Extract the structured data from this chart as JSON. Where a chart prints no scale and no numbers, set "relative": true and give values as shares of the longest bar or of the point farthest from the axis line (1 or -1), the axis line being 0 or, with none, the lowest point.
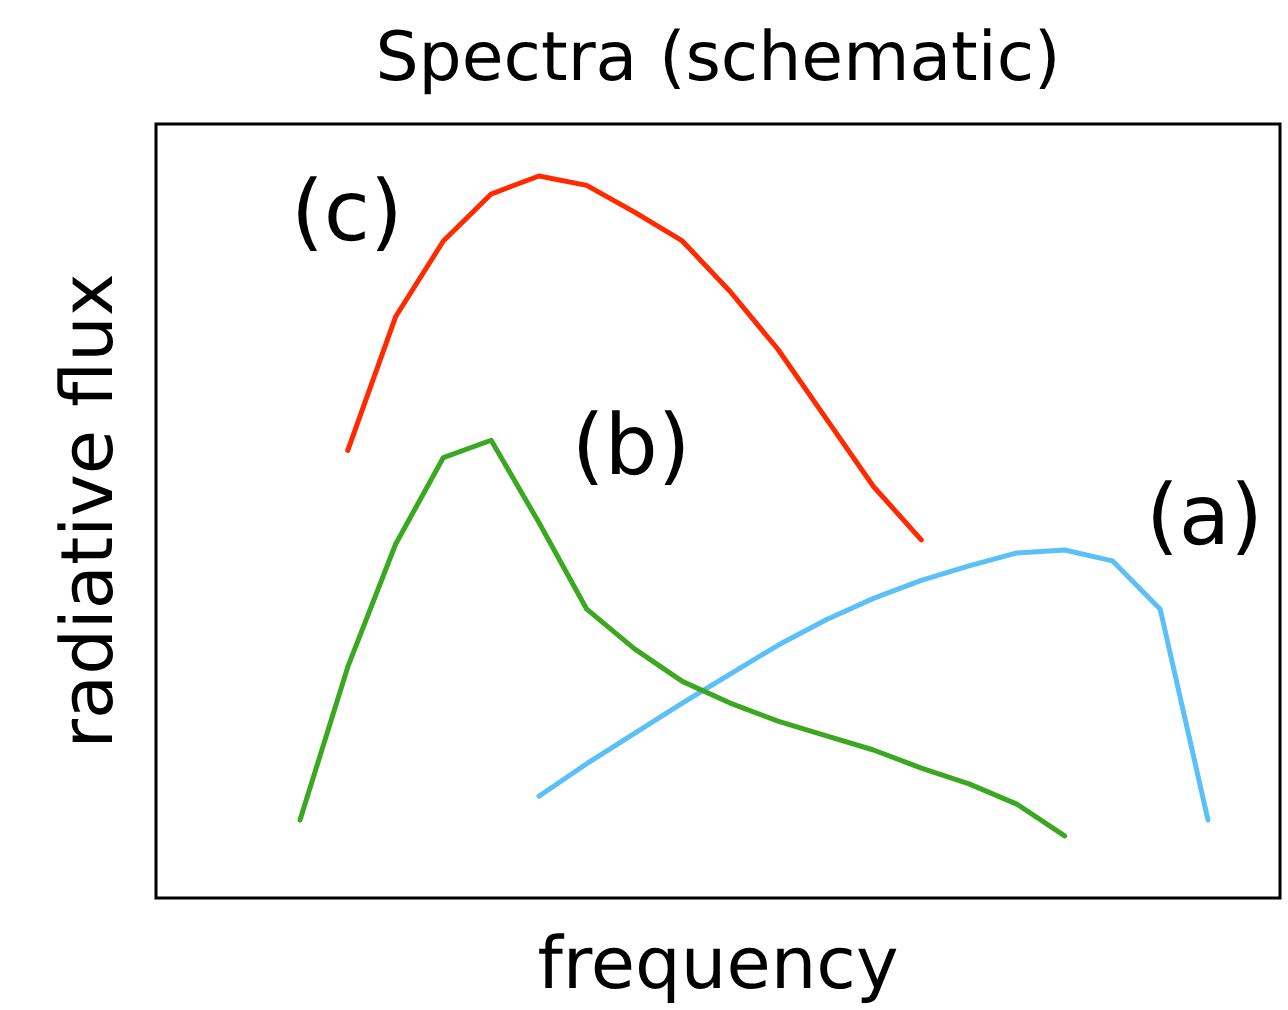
{
  "chart_data": {
    "type": "line",
    "title": "Spectra (schematic)",
    "xlabel": "frequency",
    "ylabel": "radiative flux",
    "relative": true,
    "marker": "none",
    "line_style": "solid",
    "categories": [
      null,
      null,
      null,
      null,
      null,
      null,
      null,
      null,
      null,
      null,
      null,
      null,
      null,
      null,
      null,
      null,
      null,
      null,
      null,
      null
    ],
    "series": [
      {
        "name": "(a)",
        "color": "#5bc0f8",
        "values": [
          null,
          null,
          null,
          null,
          null,
          0.141,
          0.186,
          0.228,
          0.27,
          0.31,
          0.35,
          0.385,
          0.415,
          0.44,
          0.46,
          0.478,
          0.482,
          0.467,
          0.4,
          0.108
        ]
      },
      {
        "name": "(b)",
        "color": "#3aa820",
        "values": [
          0.108,
          0.32,
          0.49,
          0.61,
          0.634,
          0.52,
          0.4,
          0.345,
          0.3,
          0.27,
          0.245,
          0.225,
          0.205,
          0.18,
          0.158,
          0.13,
          0.086,
          null,
          null,
          null
        ]
      },
      {
        "name": "(c)",
        "color": "#ff2a00",
        "values": [
          null,
          0.62,
          0.805,
          0.91,
          0.975,
          1,
          0.987,
          0.95,
          0.91,
          0.84,
          0.76,
          0.665,
          0.57,
          0.496,
          null,
          null,
          null,
          null,
          null,
          null
        ]
      }
    ]
  }
}
